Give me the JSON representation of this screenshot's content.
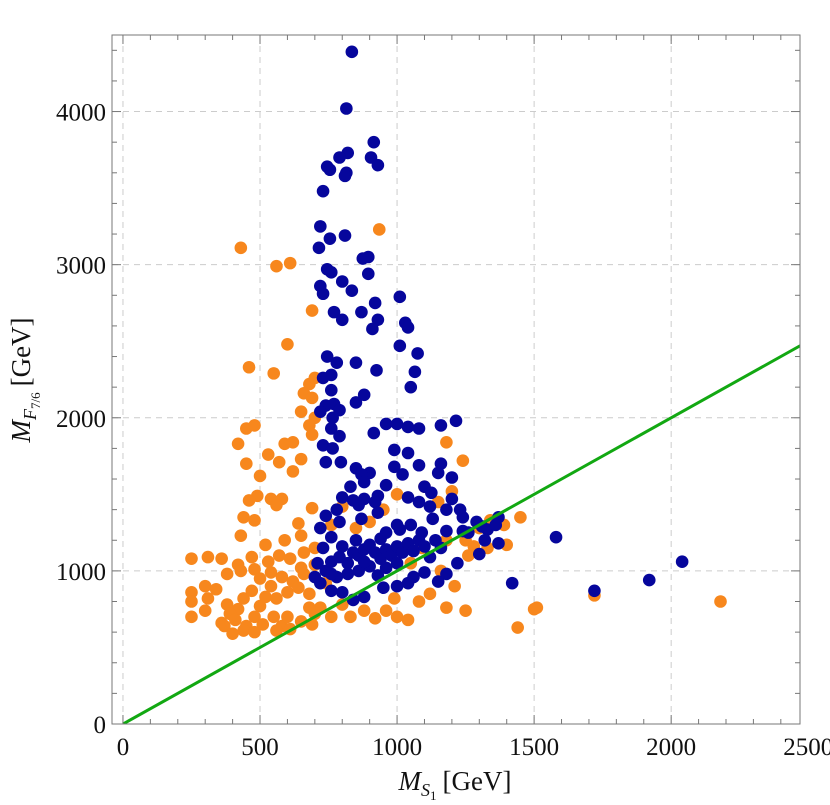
{
  "chart_data": {
    "type": "scatter",
    "xlabel": {
      "symbol": "M",
      "subscript": "S",
      "subsubscript": "1",
      "unit": "[GeV]"
    },
    "ylabel": {
      "symbol": "M",
      "subscript": "F",
      "subsubscript": "7/6",
      "unit": "[GeV]"
    },
    "xlim": [
      -40,
      2470
    ],
    "ylim": [
      0,
      4500
    ],
    "xticks": [
      0,
      500,
      1000,
      1500,
      2000,
      2500
    ],
    "yticks": [
      0,
      1000,
      2000,
      3000,
      4000
    ],
    "xminorticks": [
      100,
      200,
      300,
      400,
      600,
      700,
      800,
      900,
      1100,
      1200,
      1300,
      1400,
      1600,
      1700,
      1800,
      1900,
      2100,
      2200,
      2300,
      2400
    ],
    "yminorticks": [
      200,
      400,
      600,
      800,
      1200,
      1400,
      1600,
      1800,
      2200,
      2400,
      2600,
      2800,
      3200,
      3400,
      3600,
      3800,
      4200,
      4400
    ],
    "grid": true,
    "reference_line": {
      "color": "#12a812",
      "x": [
        0,
        2500
      ],
      "values": [
        0,
        2500
      ]
    },
    "series": [
      {
        "color": "#f7871d",
        "x": [
          430,
          560,
          610,
          935,
          600,
          690,
          460,
          550,
          680,
          700,
          660,
          690,
          650,
          700,
          450,
          480,
          420,
          590,
          620,
          680,
          690,
          530,
          570,
          620,
          650,
          450,
          500,
          490,
          460,
          540,
          580,
          440,
          480,
          560,
          640,
          690,
          650,
          430,
          520,
          590,
          250,
          310,
          360,
          420,
          470,
          530,
          570,
          610,
          660,
          700,
          380,
          430,
          480,
          500,
          540,
          580,
          620,
          660,
          250,
          250,
          300,
          310,
          340,
          380,
          420,
          440,
          470,
          500,
          520,
          540,
          560,
          600,
          640,
          680,
          250,
          300,
          360,
          390,
          410,
          450,
          480,
          510,
          550,
          580,
          610,
          650,
          690,
          700,
          720,
          760,
          800,
          830,
          880,
          920,
          960,
          1000,
          1040,
          990,
          1080,
          1120,
          1180,
          1210,
          1250,
          1160,
          1180,
          1250,
          1280,
          1300,
          1340,
          1390,
          1450,
          1400,
          1330,
          1260,
          1050,
          1090,
          1180,
          1240,
          1200,
          1150,
          1100,
          1000,
          950,
          900,
          850,
          800,
          760,
          1720,
          1500,
          1510,
          1440,
          2180,
          600,
          650,
          700,
          740,
          680,
          560,
          440,
          370,
          400,
          480
        ],
        "values": [
          3110,
          2990,
          3010,
          3230,
          2480,
          2700,
          2330,
          2290,
          2220,
          2260,
          2160,
          2130,
          2040,
          2000,
          1930,
          1950,
          1830,
          1830,
          1840,
          1950,
          1890,
          1760,
          1710,
          1650,
          1730,
          1700,
          1620,
          1490,
          1460,
          1470,
          1470,
          1350,
          1330,
          1430,
          1310,
          1410,
          1230,
          1230,
          1170,
          1200,
          1080,
          1090,
          1080,
          1040,
          1090,
          1060,
          1100,
          1080,
          1120,
          1150,
          980,
          1000,
          1010,
          950,
          990,
          960,
          930,
          980,
          860,
          800,
          900,
          820,
          880,
          780,
          750,
          820,
          870,
          770,
          830,
          900,
          820,
          860,
          890,
          850,
          700,
          740,
          660,
          720,
          680,
          640,
          700,
          650,
          700,
          640,
          620,
          670,
          650,
          720,
          760,
          700,
          780,
          700,
          740,
          690,
          740,
          700,
          680,
          820,
          800,
          850,
          760,
          900,
          740,
          1000,
          1200,
          1200,
          1160,
          1280,
          1330,
          1300,
          1350,
          1170,
          1150,
          1100,
          1050,
          1150,
          1840,
          1720,
          1520,
          1450,
          1550,
          1500,
          1400,
          1320,
          1280,
          1420,
          1300,
          840,
          750,
          760,
          630,
          800,
          700,
          1020,
          1040,
          920,
          760,
          610,
          610,
          640,
          590,
          600
        ]
      },
      {
        "color": "#06069c",
        "x": [
          835,
          815,
          915,
          905,
          820,
          790,
          745,
          755,
          815,
          810,
          930,
          730,
          720,
          755,
          810,
          895,
          875,
          715,
          745,
          760,
          720,
          835,
          730,
          800,
          895,
          920,
          870,
          1010,
          770,
          800,
          930,
          910,
          1030,
          1040,
          1010,
          1075,
          745,
          780,
          850,
          880,
          730,
          760,
          925,
          1065,
          1050,
          760,
          740,
          770,
          790,
          850,
          720,
          765,
          960,
          1000,
          1080,
          760,
          790,
          730,
          915,
          1040,
          1160,
          1215,
          765,
          740,
          795,
          850,
          900,
          990,
          1040,
          1080,
          1020,
          870,
          1200,
          1150,
          1100,
          1125,
          960,
          930,
          920,
          880,
          800,
          840,
          860,
          1040,
          1080,
          1120,
          1180,
          1200,
          1230,
          1240,
          1290,
          1310,
          1330,
          1370,
          1360,
          1580,
          2040,
          1920,
          1720,
          1420,
          1370,
          1320,
          1300,
          1260,
          1220,
          1180,
          1150,
          1100,
          1060,
          1040,
          1000,
          950,
          930,
          880,
          840,
          800,
          760,
          720,
          740,
          710,
          760,
          790,
          820,
          840,
          860,
          880,
          900,
          920,
          940,
          960,
          980,
          1000,
          1020,
          1040,
          1060,
          1080,
          1100,
          1120,
          1140,
          1160,
          1000,
          960,
          900,
          860,
          820,
          780,
          760,
          880,
          940,
          1010,
          1050,
          1090,
          850,
          800,
          760,
          720,
          790,
          870,
          930,
          1000,
          1130,
          960,
          780,
          740,
          830,
          880,
          990,
          1160,
          1240,
          1180,
          730,
          700
        ],
        "values": [
          4390,
          4020,
          3800,
          3700,
          3730,
          3700,
          3640,
          3620,
          3600,
          3580,
          3650,
          3480,
          3250,
          3170,
          3190,
          3050,
          3040,
          3110,
          2970,
          2950,
          2860,
          2830,
          2810,
          2890,
          2940,
          2750,
          2690,
          2790,
          2690,
          2640,
          2640,
          2580,
          2620,
          2590,
          2470,
          2420,
          2400,
          2360,
          2360,
          2150,
          2260,
          2280,
          2310,
          2300,
          2200,
          2180,
          2080,
          2090,
          2050,
          2100,
          2040,
          2000,
          1960,
          1960,
          1930,
          1930,
          1880,
          1820,
          1900,
          1940,
          1950,
          1980,
          1800,
          1710,
          1710,
          1670,
          1640,
          1790,
          1770,
          1690,
          1630,
          1630,
          1610,
          1640,
          1550,
          1510,
          1560,
          1490,
          1450,
          1470,
          1480,
          1460,
          1430,
          1480,
          1450,
          1420,
          1400,
          1470,
          1400,
          1350,
          1320,
          1290,
          1270,
          1350,
          1300,
          1220,
          1060,
          940,
          870,
          920,
          1180,
          1200,
          1110,
          1250,
          1050,
          980,
          930,
          990,
          960,
          920,
          900,
          890,
          970,
          830,
          810,
          860,
          870,
          920,
          1000,
          1050,
          1060,
          1090,
          1050,
          1120,
          1100,
          1140,
          1170,
          1120,
          1080,
          1140,
          1100,
          1160,
          1120,
          1180,
          1130,
          1200,
          1160,
          1090,
          1200,
          1150,
          1050,
          1020,
          1030,
          1000,
          980,
          960,
          980,
          1060,
          1210,
          1270,
          1300,
          1250,
          1200,
          1160,
          1220,
          1280,
          1320,
          1340,
          1380,
          1300,
          1340,
          1250,
          1400,
          1360,
          1550,
          1580,
          1680,
          1700,
          1260,
          1260,
          1150,
          960
        ]
      }
    ]
  }
}
